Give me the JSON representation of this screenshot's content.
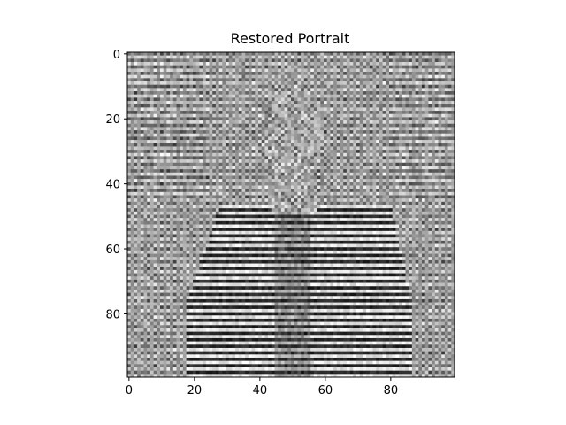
{
  "figure": {
    "title": "Restored Portrait",
    "x_ticks": [
      "0",
      "20",
      "40",
      "60",
      "80"
    ],
    "y_ticks": [
      "0",
      "20",
      "40",
      "60",
      "80"
    ]
  },
  "image": {
    "type": "grayscale-image",
    "colormap": "gray",
    "width": 100,
    "height": 100,
    "pixel_range": [
      0,
      99
    ],
    "description_of_pixels": "noisy restored grayscale portrait with strong horizontal stripe / checker artifacts"
  },
  "colors": {
    "background": "#ffffff",
    "axis": "#000000"
  }
}
